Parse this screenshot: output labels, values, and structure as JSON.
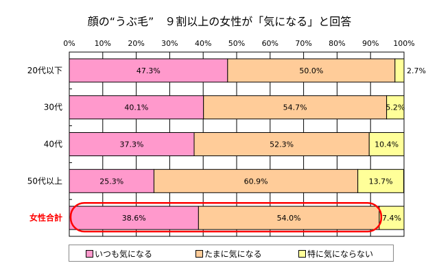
{
  "chart_data": {
    "type": "bar",
    "orientation": "horizontal",
    "stacked": true,
    "title": "顔の“うぶ毛”　９割以上の女性が「気になる」と回答",
    "categories": [
      "20代以下",
      "30代",
      "40代",
      "50代以上",
      "女性合計"
    ],
    "highlight_category": "女性合計",
    "series": [
      {
        "name": "いつも気になる",
        "color": "#FF99CC",
        "values": [
          47.3,
          40.1,
          37.3,
          25.3,
          38.6
        ]
      },
      {
        "name": "たまに気になる",
        "color": "#FFCC99",
        "values": [
          50.0,
          54.7,
          52.3,
          60.9,
          54.0
        ]
      },
      {
        "name": "特に気にならない",
        "color": "#FFFF99",
        "values": [
          2.7,
          5.2,
          10.4,
          13.7,
          7.4
        ]
      }
    ],
    "x_ticks": [
      "0%",
      "10%",
      "20%",
      "30%",
      "40%",
      "50%",
      "60%",
      "70%",
      "80%",
      "90%",
      "100%"
    ],
    "xlim": [
      0,
      100
    ],
    "grid": true,
    "legend_position": "bottom",
    "highlight_color": "#FF0000"
  }
}
